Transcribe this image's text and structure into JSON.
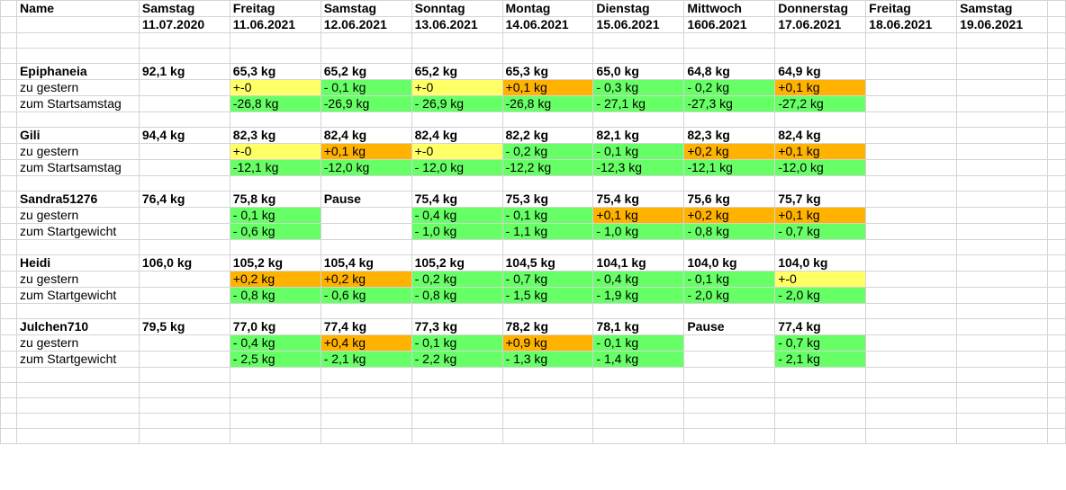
{
  "header": {
    "name_label": "Name",
    "days": [
      "Samstag",
      "Freitag",
      "Samstag",
      "Sonntag",
      "Montag",
      "Dienstag",
      "Mittwoch",
      "Donnerstag",
      "Freitag",
      "Samstag"
    ],
    "dates": [
      "11.07.2020",
      "11.06.2021",
      "12.06.2021",
      "13.06.2021",
      "14.06.2021",
      "15.06.2021",
      "1606.2021",
      "17.06.2021",
      "18.06.2021",
      "19.06.2021"
    ]
  },
  "colors": {
    "green": "#66ff66",
    "yellow": "#ffff66",
    "orange": "#ffb200",
    "gridline": "#d4d4d4"
  },
  "persons": [
    {
      "name": "Epiphaneia",
      "weights": [
        "92,1 kg",
        "65,3 kg",
        "65,2 kg",
        "65,2 kg",
        "65,3 kg",
        "65,0 kg",
        "64,8 kg",
        "64,9 kg",
        "",
        ""
      ],
      "rows": [
        {
          "label": "zu gestern",
          "values": [
            "",
            "+-0",
            "- 0,1 kg",
            "+-0",
            "+0,1 kg",
            "- 0,3 kg",
            "- 0,2 kg",
            "+0,1 kg",
            "",
            ""
          ],
          "colors": [
            "",
            "y",
            "g",
            "y",
            "o",
            "g",
            "g",
            "o",
            "",
            ""
          ]
        },
        {
          "label": "zum Startsamstag",
          "values": [
            "",
            "-26,8 kg",
            "-26,9 kg",
            "- 26,9 kg",
            "-26,8 kg",
            "- 27,1 kg",
            "-27,3 kg",
            "-27,2 kg",
            "",
            ""
          ],
          "colors": [
            "",
            "g",
            "g",
            "g",
            "g",
            "g",
            "g",
            "g",
            "",
            ""
          ]
        }
      ]
    },
    {
      "name": "Gili",
      "weights": [
        "94,4 kg",
        "82,3 kg",
        "82,4 kg",
        "82,4 kg",
        "82,2 kg",
        "82,1 kg",
        "82,3 kg",
        "82,4 kg",
        "",
        ""
      ],
      "rows": [
        {
          "label": "zu gestern",
          "values": [
            "",
            "+-0",
            "+0,1 kg",
            "+-0",
            "- 0,2 kg",
            "- 0,1 kg",
            "+0,2 kg",
            "+0,1 kg",
            "",
            ""
          ],
          "colors": [
            "",
            "y",
            "o",
            "y",
            "g",
            "g",
            "o",
            "o",
            "",
            ""
          ]
        },
        {
          "label": "zum Startsamstag",
          "values": [
            "",
            "-12,1 kg",
            "-12,0 kg",
            "- 12,0 kg",
            "-12,2 kg",
            "-12,3 kg",
            "-12,1 kg",
            "-12,0 kg",
            "",
            ""
          ],
          "colors": [
            "",
            "g",
            "g",
            "g",
            "g",
            "g",
            "g",
            "g",
            "",
            ""
          ]
        }
      ]
    },
    {
      "name": "Sandra51276",
      "weights": [
        "76,4 kg",
        "75,8 kg",
        "Pause",
        "75,4 kg",
        "75,3 kg",
        "75,4 kg",
        "75,6 kg",
        "75,7 kg",
        "",
        ""
      ],
      "rows": [
        {
          "label": "zu gestern",
          "values": [
            "",
            "- 0,1 kg",
            "",
            "- 0,4 kg",
            "- 0,1 kg",
            "+0,1 kg",
            "+0,2 kg",
            "+0,1 kg",
            "",
            ""
          ],
          "colors": [
            "",
            "g",
            "",
            "g",
            "g",
            "o",
            "o",
            "o",
            "",
            ""
          ]
        },
        {
          "label": "zum Startgewicht",
          "values": [
            "",
            "- 0,6 kg",
            "",
            "- 1,0 kg",
            "- 1,1 kg",
            "- 1,0 kg",
            "- 0,8 kg",
            "- 0,7 kg",
            "",
            ""
          ],
          "colors": [
            "",
            "g",
            "",
            "g",
            "g",
            "g",
            "g",
            "g",
            "",
            ""
          ]
        }
      ]
    },
    {
      "name": "Heidi",
      "weights": [
        "106,0 kg",
        "105,2  kg",
        "105,4 kg",
        "105,2 kg",
        "104,5 kg",
        "104,1 kg",
        "104,0 kg",
        "104,0 kg",
        "",
        ""
      ],
      "rows": [
        {
          "label": "zu gestern",
          "values": [
            "",
            "+0,2 kg",
            "+0,2 kg",
            "- 0,2 kg",
            "- 0,7 kg",
            "- 0,4 kg",
            "- 0,1 kg",
            "+-0",
            "",
            ""
          ],
          "colors": [
            "",
            "o",
            "o",
            "g",
            "g",
            "g",
            "g",
            "y",
            "",
            ""
          ]
        },
        {
          "label": "zum Startgewicht",
          "values": [
            "",
            "- 0,8 kg",
            "- 0,6 kg",
            "- 0,8 kg",
            "- 1,5 kg",
            "- 1,9 kg",
            "- 2,0 kg",
            "- 2,0 kg",
            "",
            ""
          ],
          "colors": [
            "",
            "g",
            "g",
            "g",
            "g",
            "g",
            "g",
            "g",
            "",
            ""
          ]
        }
      ]
    },
    {
      "name": "Julchen710",
      "weights": [
        "79,5 kg",
        "77,0 kg",
        "77,4 kg",
        "77,3 kg",
        "78,2 kg",
        "78,1 kg",
        "Pause",
        "77,4 kg",
        "",
        ""
      ],
      "rows": [
        {
          "label": "zu gestern",
          "values": [
            "",
            "- 0,4 kg",
            "+0,4 kg",
            "- 0,1 kg",
            "+0,9 kg",
            "- 0,1 kg",
            "",
            "- 0,7 kg",
            "",
            ""
          ],
          "colors": [
            "",
            "g",
            "o",
            "g",
            "o",
            "g",
            "",
            "g",
            "",
            ""
          ]
        },
        {
          "label": "zum Startgewicht",
          "values": [
            "",
            "- 2,5 kg",
            "- 2,1 kg",
            "- 2,2 kg",
            "- 1,3 kg",
            "- 1,4 kg",
            "",
            "- 2,1 kg",
            "",
            ""
          ],
          "colors": [
            "",
            "g",
            "g",
            "g",
            "g",
            "g",
            "",
            "g",
            "",
            ""
          ]
        }
      ]
    }
  ]
}
